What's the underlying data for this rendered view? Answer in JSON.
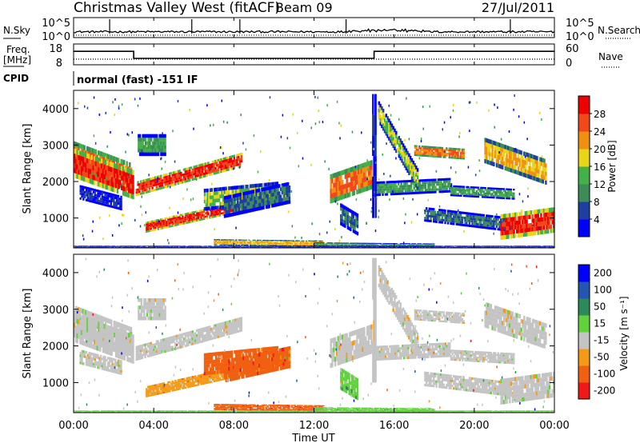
{
  "header": {
    "title": "Christmas Valley West (fitACF)",
    "beam": "Beam 09",
    "date": "27/Jul/2011"
  },
  "left_labels": {
    "nsky": "N.Sky",
    "freq_line1": "Freq.",
    "freq_line2": "[MHz]",
    "cpid": "CPID"
  },
  "right_labels": {
    "nsearch": "N.Search",
    "nave": "Nave"
  },
  "cpid_text": "normal (fast) -151 IF",
  "chart_data": [
    {
      "type": "line",
      "name": "noise",
      "ylabel": "N.Sky",
      "y2label": "N.Search",
      "y_ticks": [
        "10^5",
        "10^0"
      ],
      "y2_ticks": [
        "10^5",
        "10^0"
      ]
    },
    {
      "type": "line",
      "name": "frequency",
      "ylabel": "Freq. [MHz]",
      "y2label": "Nave",
      "y_ticks": [
        "18",
        "8"
      ],
      "y2_ticks": [
        "60",
        "0"
      ],
      "series": [
        {
          "name": "Freq.",
          "x": [
            0,
            3,
            3,
            15,
            15,
            24
          ],
          "y": [
            15.2,
            15.2,
            11.2,
            11.2,
            15.2,
            15.2
          ]
        }
      ]
    },
    {
      "type": "heatmap",
      "name": "power",
      "xlabel": "Time UT",
      "ylabel": "Slant Range [km]",
      "ylim": [
        180,
        4500
      ],
      "y_ticks": [
        "1000",
        "2000",
        "3000",
        "4000"
      ],
      "colorbar_label": "Power [dB]",
      "colorbar_ticks": [
        "4",
        "8",
        "12",
        "16",
        "20",
        "24",
        "28"
      ]
    },
    {
      "type": "heatmap",
      "name": "velocity",
      "xlabel": "Time UT",
      "ylabel": "Slant Range [km]",
      "ylim": [
        180,
        4500
      ],
      "y_ticks": [
        "1000",
        "2000",
        "3000",
        "4000"
      ],
      "colorbar_label": "Velocity [m s⁻¹]",
      "colorbar_ticks": [
        "200",
        "100",
        "50",
        "15",
        "-15",
        "-50",
        "-100",
        "-200"
      ]
    }
  ],
  "x_axis": {
    "ticks": [
      "00:00",
      "04:00",
      "08:00",
      "12:00",
      "16:00",
      "20:00",
      "00:00"
    ],
    "label": "Time UT",
    "range_hours": [
      0,
      24
    ]
  },
  "colors": {
    "power": [
      "#0000ff",
      "#1f3fa0",
      "#3c8c5a",
      "#44b048",
      "#e8d418",
      "#f09010",
      "#f04818",
      "#ee0000"
    ],
    "velocity": [
      "#0000ff",
      "#2455b0",
      "#2c8a58",
      "#62d23c",
      "#c4c4c4",
      "#f49a14",
      "#f06010",
      "#f01818"
    ]
  }
}
